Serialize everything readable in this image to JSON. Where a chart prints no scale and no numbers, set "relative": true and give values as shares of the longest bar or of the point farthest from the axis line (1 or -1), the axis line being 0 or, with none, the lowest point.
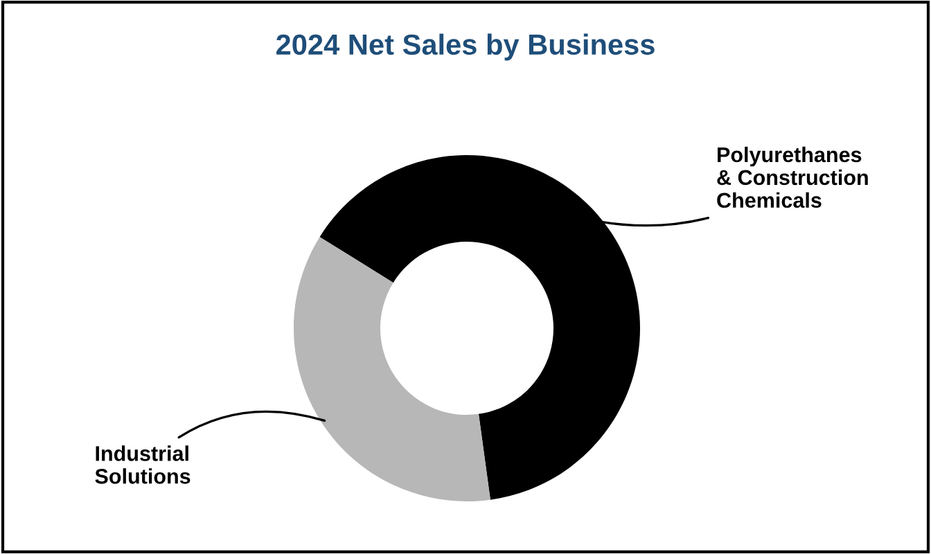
{
  "chart_data": {
    "type": "donut",
    "title": "2024 Net Sales by Business",
    "relative": true,
    "categories": [
      "Polyurethanes\n& Construction\nChemicals",
      "Industrial\nSolutions"
    ],
    "values": [
      64,
      36
    ],
    "colors": [
      "#000000",
      "#b7b7b7"
    ]
  }
}
